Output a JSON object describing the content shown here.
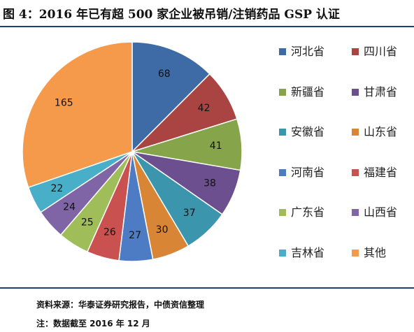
{
  "figure": {
    "title": "图 4：2016 年已有超 500 家企业被吊销/注销药品 GSP 认证",
    "source": "资料来源：华泰证券研究报告，中债资信整理",
    "note": "注：数据截至 2016 年 12 月"
  },
  "chart_data": {
    "type": "pie",
    "title": "",
    "legend_position": "right",
    "categories": [
      "河北省",
      "四川省",
      "新疆省",
      "甘肃省",
      "安徽省",
      "山东省",
      "河南省",
      "福建省",
      "广东省",
      "山西省",
      "吉林省",
      "其他"
    ],
    "values": [
      68,
      42,
      41,
      38,
      37,
      30,
      27,
      26,
      25,
      24,
      22,
      165
    ],
    "colors": [
      "#3e6aa6",
      "#a94442",
      "#86a44a",
      "#6b4f8f",
      "#3a95ad",
      "#d98536",
      "#4d7cc4",
      "#c9514f",
      "#9fbe5a",
      "#7f64a6",
      "#49afc9",
      "#f59a4a"
    ],
    "slice_labels": [
      "68",
      "42",
      "41",
      "38",
      "37",
      "30",
      "27",
      "26",
      "25",
      "24",
      "22",
      "165"
    ]
  }
}
